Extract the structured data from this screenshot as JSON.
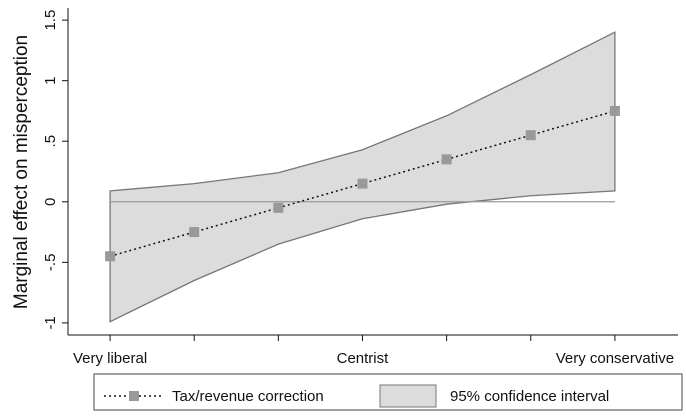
{
  "chart_data": {
    "type": "line",
    "ylabel": "Marginal effect on misperception",
    "x": [
      1,
      2,
      3,
      4,
      5,
      6,
      7
    ],
    "xticks": [
      {
        "value": 1,
        "label": "Very liberal"
      },
      {
        "value": 2,
        "label": ""
      },
      {
        "value": 3,
        "label": ""
      },
      {
        "value": 4,
        "label": "Centrist"
      },
      {
        "value": 5,
        "label": ""
      },
      {
        "value": 6,
        "label": ""
      },
      {
        "value": 7,
        "label": "Very conservative"
      }
    ],
    "yticks": [
      {
        "value": -1,
        "label": "-1"
      },
      {
        "value": -0.5,
        "label": "-.5"
      },
      {
        "value": 0,
        "label": "0"
      },
      {
        "value": 0.5,
        "label": ".5"
      },
      {
        "value": 1,
        "label": "1"
      },
      {
        "value": 1.5,
        "label": "1.5"
      }
    ],
    "ylim": [
      -1.1,
      1.6
    ],
    "xlim": [
      0.5,
      7.75
    ],
    "reference_line_y": 0,
    "series": [
      {
        "name": "Tax/revenue correction",
        "values": [
          -0.45,
          -0.25,
          -0.05,
          0.15,
          0.35,
          0.55,
          0.75
        ],
        "color": "#999999",
        "line_style": "dotted",
        "marker": "square"
      }
    ],
    "confidence_band": {
      "name": "95% confidence interval",
      "upper": [
        0.09,
        0.15,
        0.24,
        0.43,
        0.71,
        1.05,
        1.4
      ],
      "lower": [
        -0.99,
        -0.65,
        -0.35,
        -0.14,
        -0.02,
        0.05,
        0.09
      ],
      "fill": "#dcdcdc",
      "stroke": "#777777"
    },
    "grid": false,
    "legend_position": "bottom"
  }
}
